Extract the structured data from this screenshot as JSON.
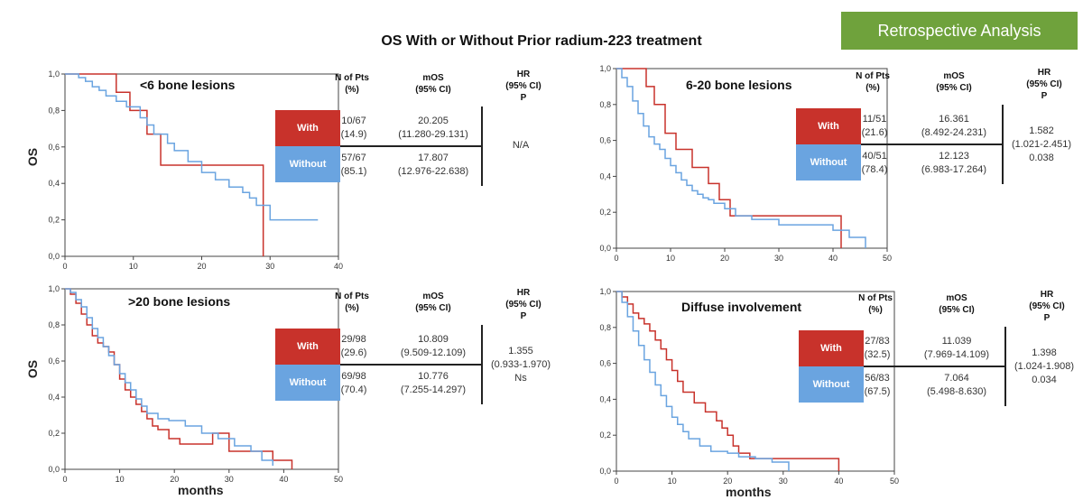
{
  "badge": "Retrospective Analysis",
  "title": "OS With or Without Prior radium-223 treatment",
  "ylabel": "OS",
  "xlabel": "months",
  "colors": {
    "with": "#c8322b",
    "without": "#6aa4e0",
    "badge": "#6fa23c"
  },
  "table_headers": {
    "n": [
      "N of Pts",
      "(%)"
    ],
    "mos": [
      "mOS",
      "(95% CI)"
    ],
    "hr": [
      "HR",
      "(95% CI)",
      "P"
    ]
  },
  "row_labels": {
    "with": "With",
    "without": "Without"
  },
  "chart_data": [
    {
      "type": "line",
      "title": "<6 bone lesions",
      "ylabel": "OS",
      "xlabel": "",
      "xlim": [
        0,
        40
      ],
      "ylim": [
        0,
        1
      ],
      "xticks": [
        "0",
        "10",
        "20",
        "30",
        "40"
      ],
      "yticks": [
        "0,0",
        "0,2",
        "0,4",
        "0,6",
        "0,8",
        "1,0"
      ],
      "series": [
        {
          "name": "With",
          "x": [
            0,
            7.5,
            7.5,
            9.5,
            9.5,
            12,
            12,
            14,
            14,
            20,
            20,
            29,
            29
          ],
          "y": [
            1,
            1,
            0.9,
            0.9,
            0.8,
            0.8,
            0.67,
            0.67,
            0.5,
            0.5,
            0.5,
            0.5,
            0
          ]
        },
        {
          "name": "Without",
          "x": [
            0,
            2,
            3,
            4,
            5,
            6,
            7.5,
            9,
            11,
            12,
            13,
            15,
            16,
            18,
            20,
            22,
            24,
            26,
            27,
            28,
            30,
            33,
            37
          ],
          "y": [
            1,
            0.98,
            0.96,
            0.93,
            0.91,
            0.88,
            0.85,
            0.82,
            0.76,
            0.72,
            0.67,
            0.62,
            0.58,
            0.52,
            0.46,
            0.42,
            0.38,
            0.35,
            0.32,
            0.28,
            0.2,
            0.2,
            0.2
          ]
        }
      ],
      "table": {
        "with": {
          "n": "10/67",
          "pct": "(14.9)",
          "mos": "20.205",
          "ci": "(11.280-29.131)"
        },
        "without": {
          "n": "57/67",
          "pct": "(85.1)",
          "mos": "17.807",
          "ci": "(12.976-22.638)"
        },
        "hr": [
          "N/A"
        ]
      }
    },
    {
      "type": "line",
      "title": "6-20 bone lesions",
      "ylabel": "",
      "xlabel": "",
      "xlim": [
        0,
        50
      ],
      "ylim": [
        0,
        1
      ],
      "xticks": [
        "0",
        "10",
        "20",
        "30",
        "40",
        "50"
      ],
      "yticks": [
        "0,0",
        "0,2",
        "0,4",
        "0,6",
        "0,8",
        "1,0"
      ],
      "series": [
        {
          "name": "With",
          "x": [
            0,
            5.5,
            5.5,
            7,
            7,
            9,
            9,
            11,
            11,
            14,
            14,
            17,
            17,
            19,
            19,
            21,
            21,
            25,
            25,
            41.5,
            41.5
          ],
          "y": [
            1,
            1,
            0.9,
            0.9,
            0.8,
            0.8,
            0.64,
            0.64,
            0.55,
            0.55,
            0.45,
            0.45,
            0.36,
            0.36,
            0.27,
            0.27,
            0.18,
            0.18,
            0.18,
            0.18,
            0
          ]
        },
        {
          "name": "Without",
          "x": [
            0,
            1,
            2,
            3,
            4,
            5,
            6,
            7,
            8,
            9,
            10,
            11,
            12,
            13,
            14,
            15,
            16,
            17,
            18,
            20,
            22,
            25,
            30,
            40,
            43,
            46
          ],
          "y": [
            1,
            0.95,
            0.9,
            0.82,
            0.75,
            0.68,
            0.62,
            0.58,
            0.55,
            0.5,
            0.46,
            0.42,
            0.38,
            0.35,
            0.32,
            0.3,
            0.28,
            0.27,
            0.25,
            0.22,
            0.18,
            0.16,
            0.13,
            0.1,
            0.06,
            0
          ]
        }
      ],
      "table": {
        "with": {
          "n": "11/51",
          "pct": "(21.6)",
          "mos": "16.361",
          "ci": "(8.492-24.231)"
        },
        "without": {
          "n": "40/51",
          "pct": "(78.4)",
          "mos": "12.123",
          "ci": "(6.983-17.264)"
        },
        "hr": [
          "1.582",
          "(1.021-2.451)",
          "0.038"
        ]
      }
    },
    {
      "type": "line",
      "title": ">20 bone lesions",
      "ylabel": "OS",
      "xlabel": "months",
      "xlim": [
        0,
        50
      ],
      "ylim": [
        0,
        1
      ],
      "xticks": [
        "0",
        "10",
        "20",
        "30",
        "40",
        "50"
      ],
      "yticks": [
        "0,0",
        "0,2",
        "0,4",
        "0,6",
        "0,8",
        "1,0"
      ],
      "series": [
        {
          "name": "With",
          "x": [
            0,
            1,
            2,
            3,
            4,
            5,
            6,
            7,
            8,
            9,
            10,
            11,
            12,
            13,
            14,
            15,
            16,
            17,
            19,
            21,
            24,
            27,
            30,
            38,
            41.5
          ],
          "y": [
            1,
            0.97,
            0.92,
            0.86,
            0.8,
            0.74,
            0.7,
            0.68,
            0.65,
            0.58,
            0.5,
            0.44,
            0.4,
            0.36,
            0.32,
            0.28,
            0.24,
            0.22,
            0.17,
            0.14,
            0.14,
            0.2,
            0.1,
            0.05,
            0
          ]
        },
        {
          "name": "Without",
          "x": [
            0,
            1,
            2,
            3,
            4,
            5,
            6,
            7,
            8,
            9,
            10,
            11,
            12,
            13,
            14,
            15,
            17,
            19,
            22,
            25,
            28,
            31,
            34,
            36,
            38
          ],
          "y": [
            1,
            0.98,
            0.94,
            0.9,
            0.84,
            0.78,
            0.73,
            0.68,
            0.63,
            0.58,
            0.53,
            0.48,
            0.44,
            0.39,
            0.35,
            0.31,
            0.28,
            0.27,
            0.24,
            0.2,
            0.17,
            0.13,
            0.1,
            0.05,
            0.02
          ]
        }
      ],
      "table": {
        "with": {
          "n": "29/98",
          "pct": "(29.6)",
          "mos": "10.809",
          "ci": "(9.509-12.109)"
        },
        "without": {
          "n": "69/98",
          "pct": "(70.4)",
          "mos": "10.776",
          "ci": "(7.255-14.297)"
        },
        "hr": [
          "1.355",
          "(0.933-1.970)",
          "Ns"
        ]
      }
    },
    {
      "type": "line",
      "title": "Diffuse involvement",
      "ylabel": "",
      "xlabel": "months",
      "xlim": [
        0,
        50
      ],
      "ylim": [
        0,
        1
      ],
      "xticks": [
        "0",
        "10",
        "20",
        "30",
        "40",
        "50"
      ],
      "yticks": [
        "0,0",
        "0,2",
        "0,4",
        "0,6",
        "0,8",
        "1,0"
      ],
      "series": [
        {
          "name": "With",
          "x": [
            0,
            1,
            2,
            3,
            4,
            5,
            6,
            7,
            8,
            9,
            10,
            11,
            12,
            14,
            16,
            18,
            19,
            20,
            21,
            22,
            24,
            30,
            40
          ],
          "y": [
            1,
            0.97,
            0.93,
            0.88,
            0.85,
            0.82,
            0.78,
            0.73,
            0.68,
            0.62,
            0.56,
            0.5,
            0.44,
            0.38,
            0.33,
            0.28,
            0.24,
            0.2,
            0.14,
            0.1,
            0.07,
            0.07,
            0
          ]
        },
        {
          "name": "Without",
          "x": [
            0,
            1,
            2,
            3,
            4,
            5,
            6,
            7,
            8,
            9,
            10,
            11,
            12,
            13,
            15,
            17,
            20,
            22,
            25,
            28,
            31
          ],
          "y": [
            1,
            0.94,
            0.86,
            0.78,
            0.7,
            0.62,
            0.55,
            0.48,
            0.42,
            0.36,
            0.3,
            0.26,
            0.22,
            0.18,
            0.14,
            0.11,
            0.1,
            0.08,
            0.07,
            0.05,
            0
          ]
        }
      ],
      "table": {
        "with": {
          "n": "27/83",
          "pct": "(32.5)",
          "mos": "11.039",
          "ci": "(7.969-14.109)"
        },
        "without": {
          "n": "56/83",
          "pct": "(67.5)",
          "mos": "7.064",
          "ci": "(5.498-8.630)"
        },
        "hr": [
          "1.398",
          "(1.024-1.908)",
          "0.034"
        ]
      }
    }
  ]
}
